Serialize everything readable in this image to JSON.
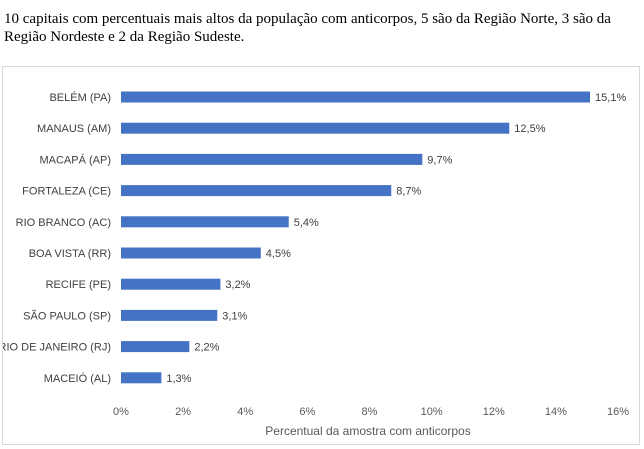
{
  "caption": "10 capitais com percentuais mais altos da população com anticorpos, 5 são da Região Norte, 3 são da Região Nordeste e 2 da Região Sudeste.",
  "chart_data": {
    "type": "bar",
    "orientation": "horizontal",
    "title": "",
    "xlabel": "Percentual da amostra com anticorpos",
    "ylabel": "",
    "xlim": [
      0,
      16
    ],
    "xticks": [
      "0%",
      "2%",
      "4%",
      "6%",
      "8%",
      "10%",
      "12%",
      "14%",
      "16%"
    ],
    "grid": false,
    "legend": "none",
    "bar_color": "#4472c4",
    "categories": [
      "BELÉM (PA)",
      "MANAUS (AM)",
      "MACAPÁ (AP)",
      "FORTALEZA (CE)",
      "RIO BRANCO (AC)",
      "BOA VISTA (RR)",
      "RECIFE (PE)",
      "SÃO PAULO (SP)",
      "RIO DE JANEIRO (RJ)",
      "MACEIÓ (AL)"
    ],
    "values": [
      15.1,
      12.5,
      9.7,
      8.7,
      5.4,
      4.5,
      3.2,
      3.1,
      2.2,
      1.3
    ],
    "value_labels": [
      "15,1%",
      "12,5%",
      "9,7%",
      "8,7%",
      "5,4%",
      "4,5%",
      "3,2%",
      "3,1%",
      "2,2%",
      "1,3%"
    ]
  }
}
